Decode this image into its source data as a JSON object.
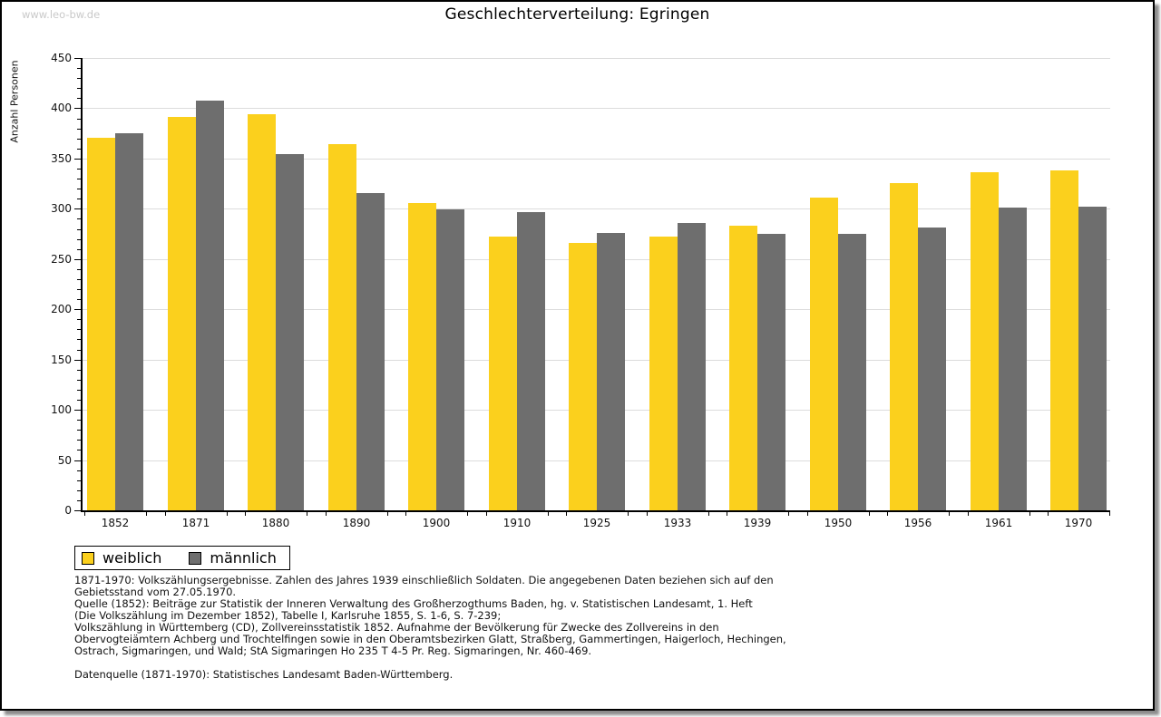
{
  "watermark": "www.leo-bw.de",
  "title": "Geschlechterverteilung: Egringen",
  "chart_data": {
    "type": "bar",
    "title": "Geschlechterverteilung: Egringen",
    "xlabel": "",
    "ylabel": "Anzahl Personen",
    "ylim": [
      0,
      450
    ],
    "ytick_step": 50,
    "minor_tick_step": 10,
    "grid": true,
    "legend_position": "bottom-left",
    "categories": [
      "1852",
      "1871",
      "1880",
      "1890",
      "1900",
      "1910",
      "1925",
      "1933",
      "1939",
      "1950",
      "1956",
      "1961",
      "1970"
    ],
    "series": [
      {
        "name": "weiblich",
        "color": "#FBD01D",
        "values": [
          371,
          391,
          394,
          364,
          306,
          272,
          266,
          272,
          283,
          311,
          326,
          336,
          338
        ]
      },
      {
        "name": "männlich",
        "color": "#6E6E6E",
        "values": [
          375,
          408,
          354,
          316,
          299,
          297,
          276,
          286,
          275,
          275,
          281,
          301,
          302
        ]
      }
    ]
  },
  "colors": {
    "weiblich": "#FBD01D",
    "männlich": "#6E6E6E",
    "gridline": "#dcdcdc",
    "frame_border": "#000000",
    "watermark": "#c9c9c9"
  },
  "notes": [
    "1871-1970: Volkszählungsergebnisse. Zahlen des Jahres 1939 einschließlich Soldaten. Die angegebenen Daten beziehen sich auf den",
    "Gebietsstand vom 27.05.1970.",
    "Quelle (1852): Beiträge zur Statistik der Inneren Verwaltung des Großherzogthums Baden, hg. v. Statistischen Landesamt, 1. Heft",
    "(Die Volkszählung im Dezember 1852), Tabelle I, Karlsruhe 1855, S. 1-6, S. 7-239;",
    "Volkszählung in Württemberg (CD), Zollvereinsstatistik 1852. Aufnahme der Bevölkerung für Zwecke des Zollvereins in den",
    "Obervogteiämtern Achberg und Trochtelfingen sowie in den Oberamtsbezirken Glatt, Straßberg, Gammertingen, Haigerloch, Hechingen,",
    "Ostrach, Sigmaringen, und Wald; StA Sigmaringen Ho 235 T 4-5 Pr. Reg. Sigmaringen, Nr. 460-469.",
    "Datenquelle (1871-1970): Statistisches Landesamt Baden-Württemberg."
  ]
}
